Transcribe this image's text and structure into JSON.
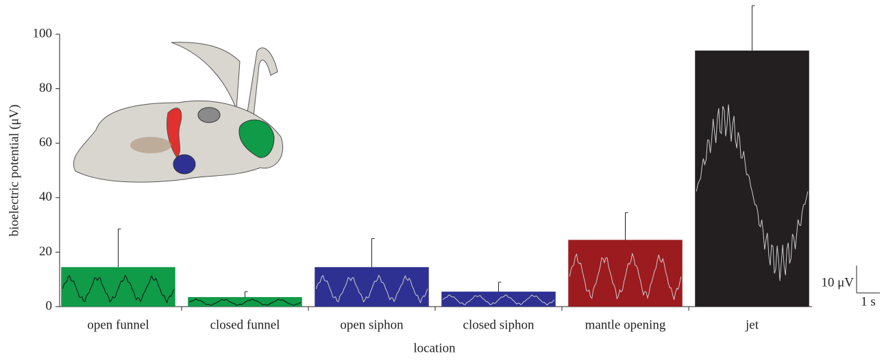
{
  "chart_data": {
    "type": "bar",
    "y_label": "bioelectric potential (μV)",
    "x_label": "location",
    "categories": [
      "open funnel",
      "closed funnel",
      "open siphon",
      "closed siphon",
      "mantle opening",
      "jet"
    ],
    "values": [
      14.5,
      3.5,
      14.5,
      5.5,
      24.5,
      94
    ],
    "errors": [
      14,
      2,
      10.5,
      3.5,
      10,
      16.5
    ],
    "colors": [
      "#0f9b48",
      "#0f9b48",
      "#2e3192",
      "#2e3192",
      "#9b1b1e",
      "#231f20"
    ],
    "ylim": [
      0,
      100
    ],
    "yticks": [
      0,
      20,
      40,
      60,
      80,
      100
    ],
    "scale_bar": {
      "y_label": "10 μV",
      "x_label": "1 s"
    }
  }
}
